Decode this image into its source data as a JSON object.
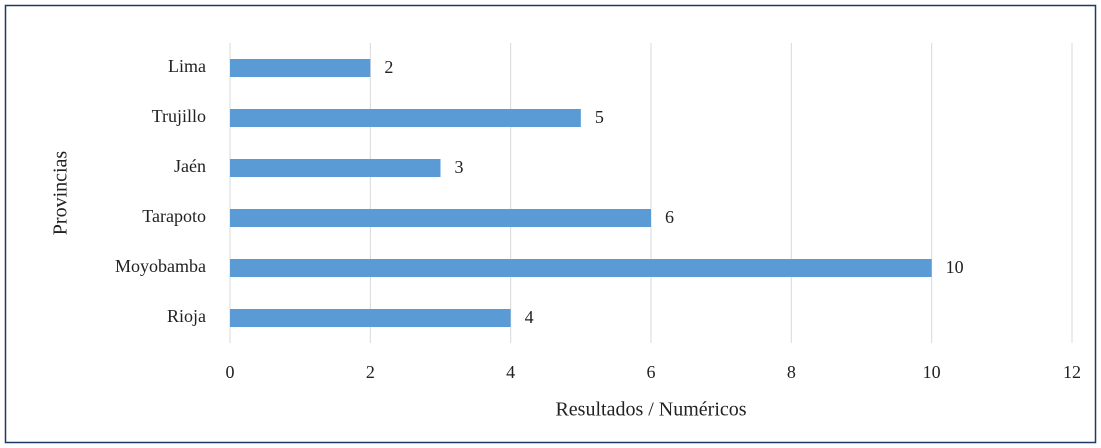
{
  "chart_data": {
    "type": "bar",
    "orientation": "horizontal",
    "x_label": "Resultados / Numéricos",
    "y_label": "Provincias",
    "categories": [
      "Lima",
      "Trujillo",
      "Jaén",
      "Tarapoto",
      "Moyobamba",
      "Rioja"
    ],
    "values": [
      2,
      5,
      3,
      6,
      10,
      4
    ],
    "color": "#5b9bd5",
    "xlim": [
      0,
      12
    ],
    "xticks": [
      0,
      2,
      4,
      6,
      8,
      10,
      12
    ],
    "grid": true
  }
}
